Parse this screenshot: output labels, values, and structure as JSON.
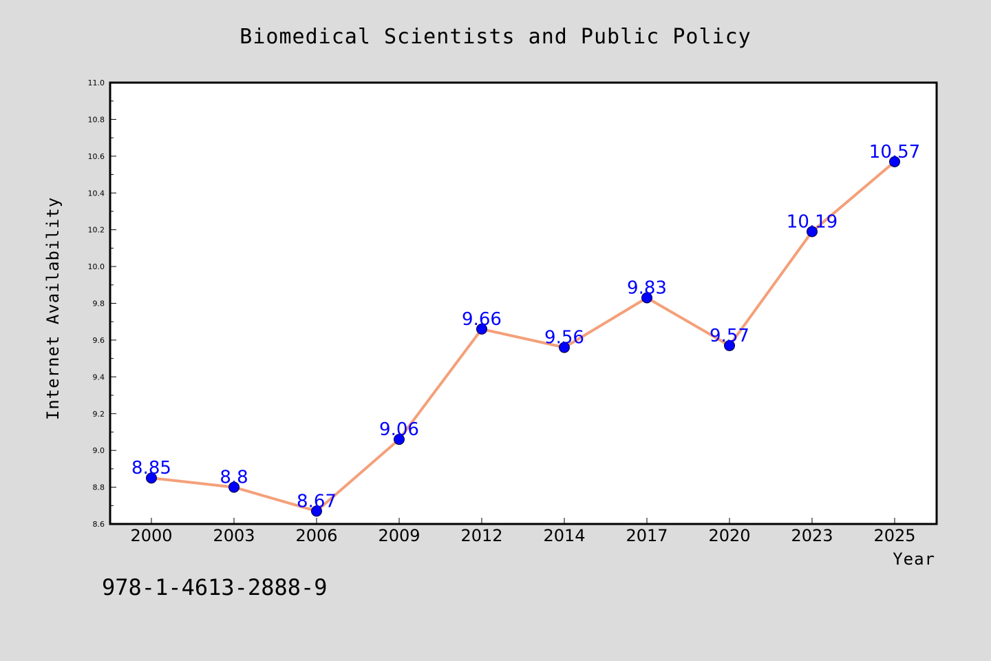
{
  "chart_data": {
    "type": "line",
    "title": "Biomedical Scientists and Public Policy",
    "xlabel": "Year",
    "ylabel": "Internet Availability",
    "categories": [
      "2000",
      "2003",
      "2006",
      "2009",
      "2012",
      "2014",
      "2017",
      "2020",
      "2023",
      "2025"
    ],
    "series": [
      {
        "values": [
          8.85,
          8.8,
          8.67,
          9.06,
          9.66,
          9.56,
          9.83,
          9.57,
          10.19,
          10.57
        ]
      }
    ],
    "data_labels": [
      "8.85",
      "8.8",
      "8.67",
      "9.06",
      "9.66",
      "9.56",
      "9.83",
      "9.57",
      "10.19",
      "10.57"
    ],
    "ylim": [
      8.6,
      11.0
    ],
    "yticks": [
      "8.6",
      "8.8",
      "9.0",
      "9.2",
      "9.4",
      "9.6",
      "9.8",
      "10.0",
      "10.2",
      "10.4",
      "10.6",
      "10.8",
      "11.0"
    ],
    "grid": false,
    "legend": "none",
    "colors": {
      "line": "#f4a07a",
      "marker": "#0000ff",
      "data_label": "#0000ff",
      "background": "#dcdcdc",
      "plot_background": "#ffffff"
    }
  },
  "annotation": {
    "text": "978-1-4613-2888-9"
  }
}
